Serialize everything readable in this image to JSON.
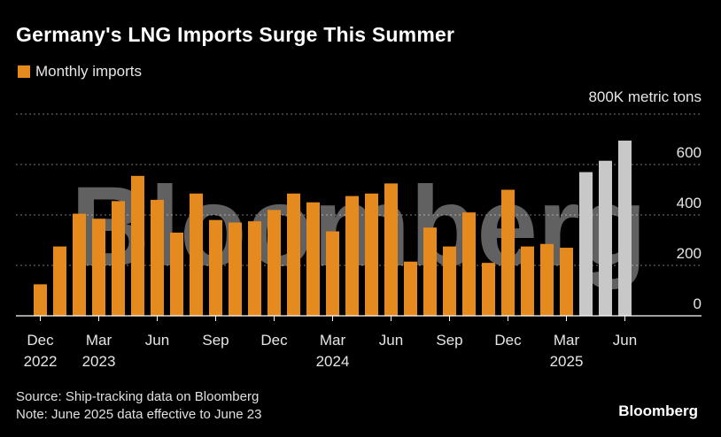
{
  "title": "Germany's LNG Imports Surge This Summer",
  "legend": {
    "label": "Monthly imports",
    "color": "#e58a1f"
  },
  "unit_label": "800K metric tons",
  "watermark": "Bloomberg",
  "source": "Source: Ship-tracking data on Bloomberg",
  "note": "Note: June 2025 data effective to June 23",
  "brand": "Bloomberg",
  "colors": {
    "actual": "#e58a1f",
    "highlight": "#c8c8c8",
    "grid": "#777777",
    "axis": "#ffffff"
  },
  "chart_data": {
    "type": "bar",
    "title": "Germany's LNG Imports Surge This Summer",
    "xlabel": "",
    "ylabel": "800K metric tons",
    "ylim": [
      0,
      800
    ],
    "yticks": [
      0,
      200,
      400,
      600
    ],
    "categories": [
      "Dec 2022",
      "Jan 2023",
      "Feb 2023",
      "Mar 2023",
      "Apr 2023",
      "May 2023",
      "Jun 2023",
      "Jul 2023",
      "Aug 2023",
      "Sep 2023",
      "Oct 2023",
      "Nov 2023",
      "Dec 2023",
      "Jan 2024",
      "Feb 2024",
      "Mar 2024",
      "Apr 2024",
      "May 2024",
      "Jun 2024",
      "Jul 2024",
      "Aug 2024",
      "Sep 2024",
      "Oct 2024",
      "Nov 2024",
      "Dec 2024",
      "Jan 2025",
      "Feb 2025",
      "Mar 2025",
      "Apr 2025",
      "May 2025",
      "Jun 2025"
    ],
    "series": [
      {
        "name": "Monthly imports",
        "values": [
          125,
          275,
          405,
          385,
          455,
          555,
          460,
          330,
          485,
          380,
          370,
          375,
          420,
          485,
          450,
          335,
          475,
          485,
          525,
          215,
          350,
          275,
          410,
          210,
          500,
          275,
          285,
          270,
          570,
          615,
          695
        ],
        "highlight_from_index": 28
      }
    ],
    "x_tick_labels": [
      {
        "index": 0,
        "month": "Dec",
        "year": "2022"
      },
      {
        "index": 3,
        "month": "Mar",
        "year": "2023"
      },
      {
        "index": 6,
        "month": "Jun",
        "year": ""
      },
      {
        "index": 9,
        "month": "Sep",
        "year": ""
      },
      {
        "index": 12,
        "month": "Dec",
        "year": ""
      },
      {
        "index": 15,
        "month": "Mar",
        "year": "2024"
      },
      {
        "index": 18,
        "month": "Jun",
        "year": ""
      },
      {
        "index": 21,
        "month": "Sep",
        "year": ""
      },
      {
        "index": 24,
        "month": "Dec",
        "year": ""
      },
      {
        "index": 27,
        "month": "Mar",
        "year": "2025"
      },
      {
        "index": 30,
        "month": "Jun",
        "year": ""
      }
    ],
    "grid": true,
    "legend_position": "top-left"
  }
}
